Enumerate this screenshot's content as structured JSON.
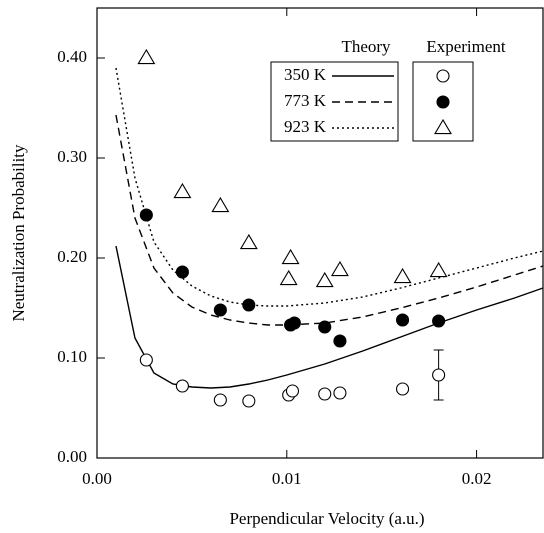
{
  "chart_data": {
    "type": "scatter",
    "x_label": "Perpendicular Velocity (a.u.)",
    "y_label": "Neutralization Probability",
    "xlim": [
      0,
      0.0235
    ],
    "ylim": [
      0,
      0.45
    ],
    "xticks": [
      {
        "value": 0,
        "label": "0.00"
      },
      {
        "value": 0.01,
        "label": "0.01"
      },
      {
        "value": 0.02,
        "label": "0.02"
      }
    ],
    "yticks": [
      {
        "value": 0,
        "label": "0.00"
      },
      {
        "value": 0.1,
        "label": "0.10"
      },
      {
        "value": 0.2,
        "label": "0.20"
      },
      {
        "value": 0.3,
        "label": "0.30"
      },
      {
        "value": 0.4,
        "label": "0.40"
      }
    ],
    "legend_headers": [
      "Theory",
      "Experiment"
    ],
    "series": [
      {
        "name": "350 K",
        "color": "#000000",
        "line_style": "solid",
        "marker": "open-circle",
        "theory_x": [
          0.001,
          0.002,
          0.003,
          0.004,
          0.005,
          0.006,
          0.007,
          0.008,
          0.009,
          0.01,
          0.012,
          0.014,
          0.016,
          0.018,
          0.02,
          0.022,
          0.0235
        ],
        "theory_values": [
          0.212,
          0.12,
          0.085,
          0.074,
          0.071,
          0.07,
          0.071,
          0.074,
          0.078,
          0.083,
          0.094,
          0.107,
          0.121,
          0.135,
          0.148,
          0.16,
          0.17
        ],
        "x": [
          0.0026,
          0.0045,
          0.0065,
          0.008,
          0.0101,
          0.0103,
          0.012,
          0.0128,
          0.0161,
          0.018
        ],
        "values": [
          0.098,
          0.072,
          0.058,
          0.057,
          0.063,
          0.067,
          0.064,
          0.065,
          0.069,
          0.083
        ],
        "errors": [
          null,
          null,
          null,
          null,
          null,
          null,
          null,
          null,
          null,
          0.025
        ]
      },
      {
        "name": "773 K",
        "color": "#000000",
        "line_style": "dashed",
        "marker": "filled-circle",
        "theory_x": [
          0.001,
          0.002,
          0.003,
          0.004,
          0.005,
          0.006,
          0.007,
          0.008,
          0.009,
          0.01,
          0.012,
          0.014,
          0.016,
          0.018,
          0.02,
          0.022,
          0.0235
        ],
        "theory_values": [
          0.343,
          0.24,
          0.19,
          0.165,
          0.151,
          0.143,
          0.138,
          0.135,
          0.133,
          0.133,
          0.135,
          0.141,
          0.15,
          0.16,
          0.171,
          0.183,
          0.192
        ],
        "x": [
          0.0026,
          0.0045,
          0.0065,
          0.008,
          0.0102,
          0.0104,
          0.012,
          0.0128,
          0.0161,
          0.018
        ],
        "values": [
          0.243,
          0.186,
          0.148,
          0.153,
          0.133,
          0.135,
          0.131,
          0.117,
          0.138,
          0.137
        ]
      },
      {
        "name": "923 K",
        "color": "#000000",
        "line_style": "dotted",
        "marker": "open-triangle",
        "theory_x": [
          0.001,
          0.002,
          0.003,
          0.004,
          0.005,
          0.006,
          0.007,
          0.008,
          0.009,
          0.01,
          0.012,
          0.014,
          0.016,
          0.018,
          0.02,
          0.022,
          0.0235
        ],
        "theory_values": [
          0.39,
          0.28,
          0.216,
          0.188,
          0.172,
          0.162,
          0.156,
          0.153,
          0.152,
          0.152,
          0.155,
          0.161,
          0.17,
          0.18,
          0.19,
          0.2,
          0.207
        ],
        "x": [
          0.0026,
          0.0045,
          0.0065,
          0.008,
          0.0101,
          0.0102,
          0.012,
          0.0128,
          0.0161,
          0.018
        ],
        "values": [
          0.4,
          0.266,
          0.252,
          0.215,
          0.179,
          0.2,
          0.177,
          0.188,
          0.181,
          0.187
        ]
      }
    ]
  }
}
